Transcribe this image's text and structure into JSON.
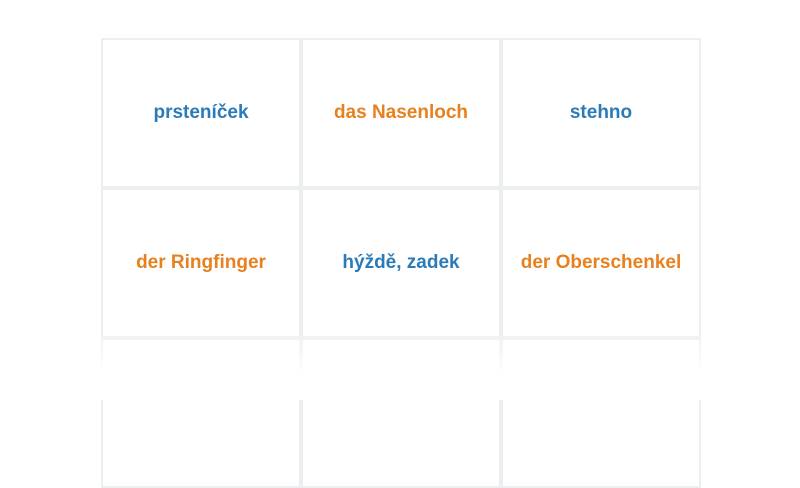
{
  "cards": [
    {
      "text": "prsteníček",
      "lang": "cs"
    },
    {
      "text": "das Nasenloch",
      "lang": "de"
    },
    {
      "text": "stehno",
      "lang": "cs"
    },
    {
      "text": "der Ringfinger",
      "lang": "de"
    },
    {
      "text": "hýždě, zadek",
      "lang": "cs"
    },
    {
      "text": "der Oberschenkel",
      "lang": "de"
    }
  ],
  "colors": {
    "cs": "#2b7bb9",
    "de": "#e8801e",
    "border": "#eceff0"
  }
}
